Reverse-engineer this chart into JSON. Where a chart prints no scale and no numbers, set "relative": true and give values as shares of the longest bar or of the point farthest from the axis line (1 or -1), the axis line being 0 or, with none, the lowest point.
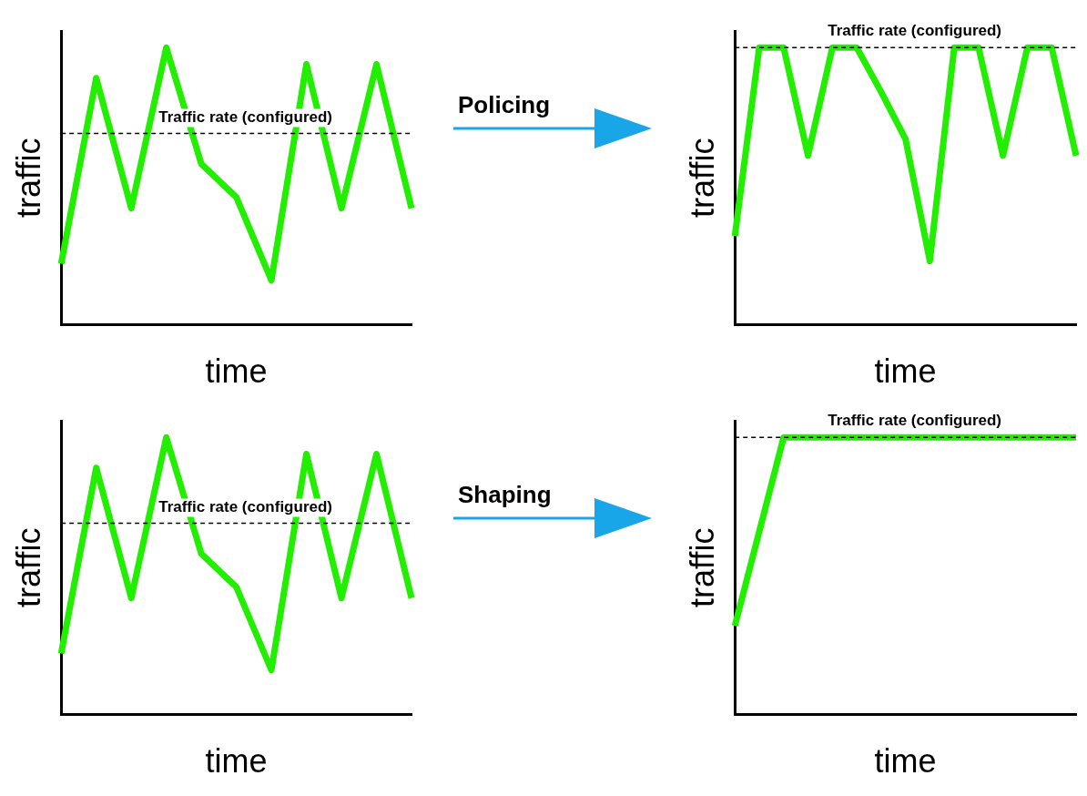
{
  "chart_data": [
    {
      "type": "line",
      "relative": true,
      "xlabel": "time",
      "ylabel": "traffic",
      "marker": "none",
      "categories": [
        null,
        null,
        null,
        null,
        null,
        null,
        null,
        null,
        null,
        null,
        null
      ],
      "series": [
        {
          "color": "#22ee00",
          "values": [
            0.22,
            0.89,
            0.42,
            1,
            0.58,
            0.46,
            0.16,
            0.94,
            0.42,
            0.94,
            0.42
          ]
        }
      ],
      "ref_lines": [
        {
          "axis": "y",
          "value": 0.69,
          "label": "Traffic rate (configured)",
          "color": "#000000",
          "line_style": "dashed"
        }
      ]
    },
    {
      "type": "line",
      "relative": true,
      "xlabel": "time",
      "ylabel": "traffic",
      "marker": "none",
      "annotations": [
        "Policing"
      ],
      "categories": [
        null,
        null,
        null,
        null,
        null,
        null,
        null,
        null,
        null,
        null,
        null,
        null,
        null,
        null,
        null
      ],
      "series": [
        {
          "color": "#22ee00",
          "values": [
            0.32,
            1,
            1,
            0.61,
            1,
            1,
            0.84,
            0.67,
            0.23,
            1,
            1,
            0.61,
            1,
            1,
            0.61
          ]
        }
      ],
      "ref_lines": [
        {
          "axis": "y",
          "value": 1,
          "label": "Traffic rate (configured)",
          "color": "#000000",
          "line_style": "dashed"
        }
      ]
    },
    {
      "type": "line",
      "relative": true,
      "xlabel": "time",
      "ylabel": "traffic",
      "marker": "none",
      "categories": [
        null,
        null,
        null,
        null,
        null,
        null,
        null,
        null,
        null,
        null,
        null
      ],
      "series": [
        {
          "color": "#22ee00",
          "values": [
            0.22,
            0.89,
            0.42,
            1,
            0.58,
            0.46,
            0.16,
            0.94,
            0.42,
            0.94,
            0.42
          ]
        }
      ],
      "ref_lines": [
        {
          "axis": "y",
          "value": 0.69,
          "label": "Traffic rate (configured)",
          "color": "#000000",
          "line_style": "dashed"
        }
      ]
    },
    {
      "type": "line",
      "relative": true,
      "xlabel": "time",
      "ylabel": "traffic",
      "marker": "none",
      "annotations": [
        "Shaping"
      ],
      "categories": [
        null,
        null,
        null,
        null,
        null,
        null,
        null,
        null
      ],
      "series": [
        {
          "color": "#22ee00",
          "values": [
            0.32,
            1,
            1,
            1,
            1,
            1,
            1,
            1
          ]
        }
      ],
      "ref_lines": [
        {
          "axis": "y",
          "value": 1,
          "label": "Traffic rate (configured)",
          "color": "#000000",
          "line_style": "dashed"
        }
      ]
    }
  ]
}
